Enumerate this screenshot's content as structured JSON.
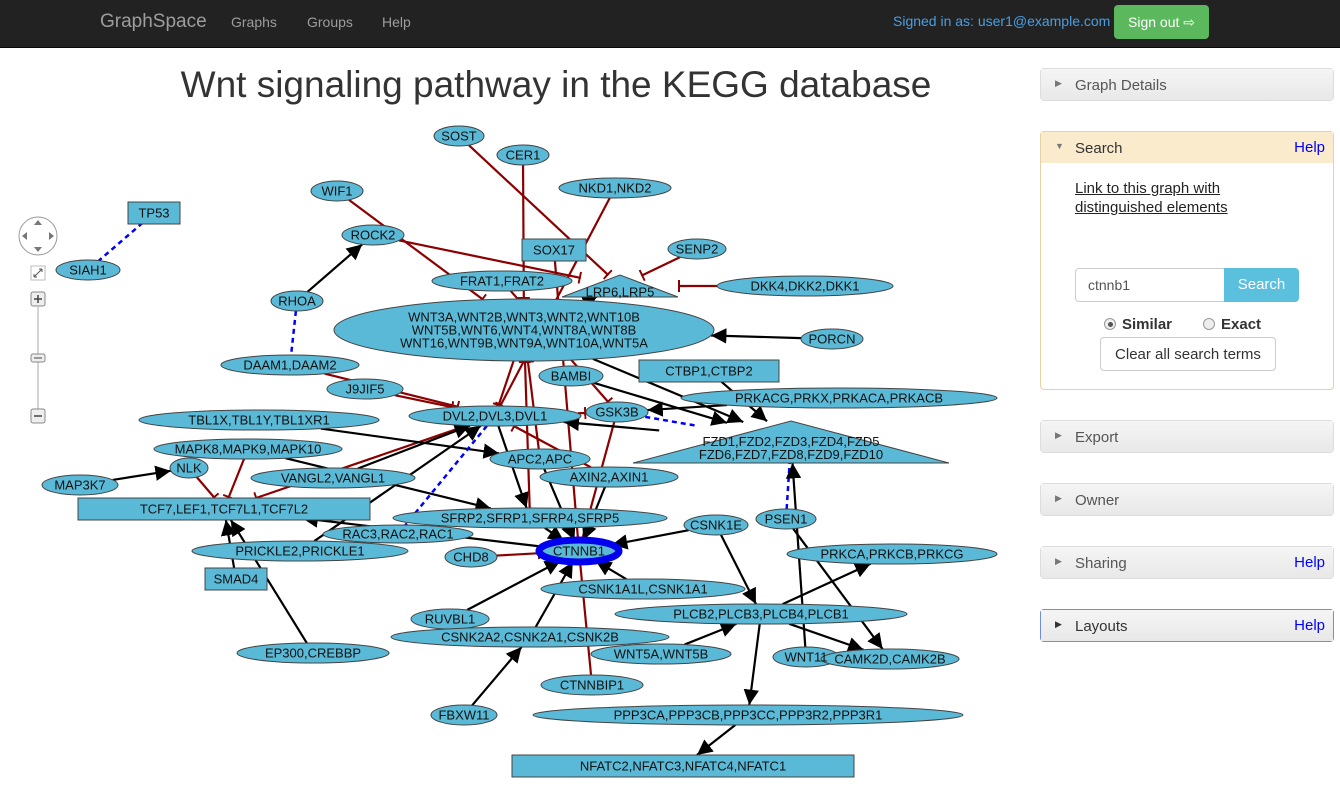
{
  "nav": {
    "brand": "GraphSpace",
    "links": [
      "Graphs",
      "Groups",
      "Help"
    ],
    "signed_in": "Signed in as: user1@example.com",
    "signout": "Sign out"
  },
  "title": "Wnt signaling pathway in the KEGG database",
  "panels": {
    "graph_details": "Graph Details",
    "search": {
      "title": "Search",
      "help": "Help",
      "link_line1": "Link to this graph with",
      "link_line2": "distinguished elements",
      "input_value": "ctnnb1",
      "button": "Search",
      "option_similar": "Similar",
      "option_exact": "Exact",
      "selected": "Similar",
      "clear": "Clear all search terms"
    },
    "export": "Export",
    "owner": "Owner",
    "sharing": {
      "title": "Sharing",
      "help": "Help"
    },
    "layouts": {
      "title": "Layouts",
      "help": "Help"
    }
  },
  "colors": {
    "node": "#5ab9d6",
    "activation": "#000000",
    "inhibition": "#8b0000",
    "binding": "#0000ff",
    "highlight": "#0000ee",
    "signout": "#5cb85c"
  },
  "graph": {
    "highlighted": "CTNNB1",
    "nodes": [
      {
        "id": "SOST",
        "label": "SOST",
        "shape": "ellipse"
      },
      {
        "id": "CER1",
        "label": "CER1",
        "shape": "ellipse"
      },
      {
        "id": "WIF1",
        "label": "WIF1",
        "shape": "ellipse"
      },
      {
        "id": "NKD",
        "label": "NKD1,NKD2",
        "shape": "ellipse"
      },
      {
        "id": "TP53",
        "label": "TP53",
        "shape": "rectangle"
      },
      {
        "id": "SIAH1",
        "label": "SIAH1",
        "shape": "ellipse"
      },
      {
        "id": "ROCK2",
        "label": "ROCK2",
        "shape": "ellipse"
      },
      {
        "id": "SOX17",
        "label": "SOX17",
        "shape": "rectangle"
      },
      {
        "id": "SENP2",
        "label": "SENP2",
        "shape": "ellipse"
      },
      {
        "id": "LRP",
        "label": "LRP6,LRP5",
        "shape": "triangle"
      },
      {
        "id": "DKK",
        "label": "DKK4,DKK2,DKK1",
        "shape": "ellipse"
      },
      {
        "id": "FRAT",
        "label": "FRAT1,FRAT2",
        "shape": "ellipse"
      },
      {
        "id": "RHOA",
        "label": "RHOA",
        "shape": "ellipse"
      },
      {
        "id": "WNT",
        "label": "WNT3A,WNT2B,WNT3,WNT2,WNT10B|WNT5B,WNT6,WNT4,WNT8A,WNT8B|WNT16,WNT9B,WNT9A,WNT10A,WNT5A",
        "shape": "ellipse"
      },
      {
        "id": "PORCN",
        "label": "PORCN",
        "shape": "ellipse"
      },
      {
        "id": "DAAM",
        "label": "DAAM1,DAAM2",
        "shape": "ellipse"
      },
      {
        "id": "CTBP",
        "label": "CTBP1,CTBP2",
        "shape": "rectangle"
      },
      {
        "id": "BAMBI",
        "label": "BAMBI",
        "shape": "ellipse"
      },
      {
        "id": "J9JIF5",
        "label": "J9JIF5",
        "shape": "ellipse"
      },
      {
        "id": "PRKAC",
        "label": "PRKACG,PRKX,PRKACA,PRKACB",
        "shape": "ellipse"
      },
      {
        "id": "TBL1",
        "label": "TBL1X,TBL1Y,TBL1XR1",
        "shape": "ellipse"
      },
      {
        "id": "DVL",
        "label": "DVL2,DVL3,DVL1",
        "shape": "ellipse"
      },
      {
        "id": "GSK3B",
        "label": "GSK3B",
        "shape": "ellipse"
      },
      {
        "id": "FZD",
        "label": "FZD1,FZD2,FZD3,FZD4,FZD5|FZD6,FZD7,FZD8,FZD9,FZD10",
        "shape": "triangle"
      },
      {
        "id": "MAPK",
        "label": "MAPK8,MAPK9,MAPK10",
        "shape": "ellipse"
      },
      {
        "id": "APC",
        "label": "APC2,APC",
        "shape": "ellipse"
      },
      {
        "id": "NLK",
        "label": "NLK",
        "shape": "ellipse"
      },
      {
        "id": "VANGL",
        "label": "VANGL2,VANGL1",
        "shape": "ellipse"
      },
      {
        "id": "AXIN",
        "label": "AXIN2,AXIN1",
        "shape": "ellipse"
      },
      {
        "id": "MAP3K7",
        "label": "MAP3K7",
        "shape": "ellipse"
      },
      {
        "id": "TCF",
        "label": "TCF7,LEF1,TCF7L1,TCF7L2",
        "shape": "rectangle"
      },
      {
        "id": "SFRP",
        "label": "SFRP2,SFRP1,SFRP4,SFRP5",
        "shape": "ellipse"
      },
      {
        "id": "CSNK1E",
        "label": "CSNK1E",
        "shape": "ellipse"
      },
      {
        "id": "PSEN1",
        "label": "PSEN1",
        "shape": "ellipse"
      },
      {
        "id": "RAC",
        "label": "RAC3,RAC2,RAC1",
        "shape": "ellipse"
      },
      {
        "id": "PRICKLE",
        "label": "PRICKLE2,PRICKLE1",
        "shape": "ellipse"
      },
      {
        "id": "CHD8",
        "label": "CHD8",
        "shape": "ellipse"
      },
      {
        "id": "CTNNB1",
        "label": "CTNNB1",
        "shape": "ellipse"
      },
      {
        "id": "PRKC",
        "label": "PRKCA,PRKCB,PRKCG",
        "shape": "ellipse"
      },
      {
        "id": "SMAD4",
        "label": "SMAD4",
        "shape": "rectangle"
      },
      {
        "id": "CSNK1A",
        "label": "CSNK1A1L,CSNK1A1",
        "shape": "ellipse"
      },
      {
        "id": "RUVBL1",
        "label": "RUVBL1",
        "shape": "ellipse"
      },
      {
        "id": "PLCB",
        "label": "PLCB2,PLCB3,PLCB4,PLCB1",
        "shape": "ellipse"
      },
      {
        "id": "CSNK2",
        "label": "CSNK2A2,CSNK2A1,CSNK2B",
        "shape": "ellipse"
      },
      {
        "id": "EP300",
        "label": "EP300,CREBBP",
        "shape": "ellipse"
      },
      {
        "id": "WNT5A",
        "label": "WNT5A,WNT5B",
        "shape": "ellipse"
      },
      {
        "id": "WNT11",
        "label": "WNT11",
        "shape": "ellipse"
      },
      {
        "id": "CAMK2",
        "label": "CAMK2D,CAMK2B",
        "shape": "ellipse"
      },
      {
        "id": "CTNNBIP1",
        "label": "CTNNBIP1",
        "shape": "ellipse"
      },
      {
        "id": "FBXW11",
        "label": "FBXW11",
        "shape": "ellipse"
      },
      {
        "id": "PPP3",
        "label": "PPP3CA,PPP3CB,PPP3CC,PPP3R2,PPP3R1",
        "shape": "ellipse"
      },
      {
        "id": "NFATC",
        "label": "NFATC2,NFATC3,NFATC4,NFATC1",
        "shape": "rectangle"
      }
    ],
    "edges": [
      [
        "SOST",
        "LRP",
        "inhibition"
      ],
      [
        "CER1",
        "WNT",
        "inhibition"
      ],
      [
        "WIF1",
        "WNT",
        "inhibition"
      ],
      [
        "NKD",
        "DVL",
        "inhibition"
      ],
      [
        "SENP2",
        "LRP",
        "inhibition"
      ],
      [
        "DKK",
        "LRP",
        "inhibition"
      ],
      [
        "TP53",
        "SIAH1",
        "binding"
      ],
      [
        "RHOA",
        "ROCK2",
        "activation"
      ],
      [
        "ROCK2",
        "LRP",
        "inhibition"
      ],
      [
        "SOX17",
        "CTNNB1",
        "inhibition"
      ],
      [
        "FRAT",
        "GSK3B",
        "inhibition"
      ],
      [
        "RHOA",
        "DAAM",
        "binding"
      ],
      [
        "PORCN",
        "WNT",
        "activation"
      ],
      [
        "WNT",
        "FZD",
        "activation"
      ],
      [
        "WNT",
        "LRP",
        "activation"
      ],
      [
        "J9JIF5",
        "DVL",
        "inhibition"
      ],
      [
        "MAP3K7",
        "NLK",
        "activation"
      ],
      [
        "NLK",
        "TCF",
        "inhibition"
      ],
      [
        "MAPK",
        "TCF",
        "inhibition"
      ],
      [
        "DVL",
        "TCF",
        "inhibition"
      ],
      [
        "GSK3B",
        "CTNNB1",
        "inhibition"
      ],
      [
        "DVL",
        "GSK3B",
        "inhibition"
      ],
      [
        "FZD",
        "DVL",
        "activation"
      ],
      [
        "FZD",
        "GSK3B",
        "binding"
      ],
      [
        "CSNK1E",
        "CTNNB1",
        "activation"
      ],
      [
        "PSEN1",
        "FZD",
        "binding"
      ],
      [
        "SFRP",
        "CTNNB1",
        "activation"
      ],
      [
        "CTNNB1",
        "TCF",
        "activation"
      ],
      [
        "CHD8",
        "CTNNB1",
        "inhibition"
      ],
      [
        "CTNNBIP1",
        "CTNNB1",
        "inhibition"
      ],
      [
        "RUVBL1",
        "CTNNB1",
        "activation"
      ],
      [
        "CSNK2",
        "CTNNB1",
        "activation"
      ],
      [
        "PLCB",
        "CAMK2",
        "activation"
      ],
      [
        "PLCB",
        "PRKC",
        "activation"
      ],
      [
        "PPP3",
        "NFATC",
        "activation"
      ],
      [
        "PLCB",
        "PPP3",
        "activation"
      ],
      [
        "SMAD4",
        "TCF",
        "activation"
      ],
      [
        "EP300",
        "TCF",
        "activation"
      ],
      [
        "CSNK1A",
        "CTNNB1",
        "activation"
      ],
      [
        "AXIN",
        "CTNNB1",
        "activation"
      ],
      [
        "APC",
        "CTNNB1",
        "activation"
      ],
      [
        "BAMBI",
        "FZD",
        "activation"
      ],
      [
        "CTBP",
        "FZD",
        "activation"
      ],
      [
        "PRKAC",
        "GSK3B",
        "activation"
      ],
      [
        "WNT11",
        "FZD",
        "activation"
      ],
      [
        "WNT5A",
        "PLCB",
        "activation"
      ],
      [
        "FBXW11",
        "CSNK2",
        "activation"
      ],
      [
        "TBL1",
        "APC",
        "activation"
      ],
      [
        "MAPK",
        "SFRP",
        "activation"
      ],
      [
        "DVL",
        "RAC",
        "binding"
      ],
      [
        "VANGL",
        "DVL",
        "activation"
      ],
      [
        "DAAM",
        "DVL",
        "inhibition"
      ],
      [
        "PRICKLE",
        "DVL",
        "activation"
      ],
      [
        "WNT",
        "DVL",
        "inhibition"
      ],
      [
        "AXIN",
        "DVL",
        "inhibition"
      ],
      [
        "DVL",
        "SFRP",
        "activation"
      ],
      [
        "PSEN1",
        "CAMK2",
        "activation"
      ],
      [
        "CSNK1E",
        "PLCB",
        "activation"
      ],
      [
        "SFRP",
        "WNT",
        "inhibition"
      ],
      [
        "APC",
        "WNT",
        "inhibition"
      ]
    ]
  }
}
